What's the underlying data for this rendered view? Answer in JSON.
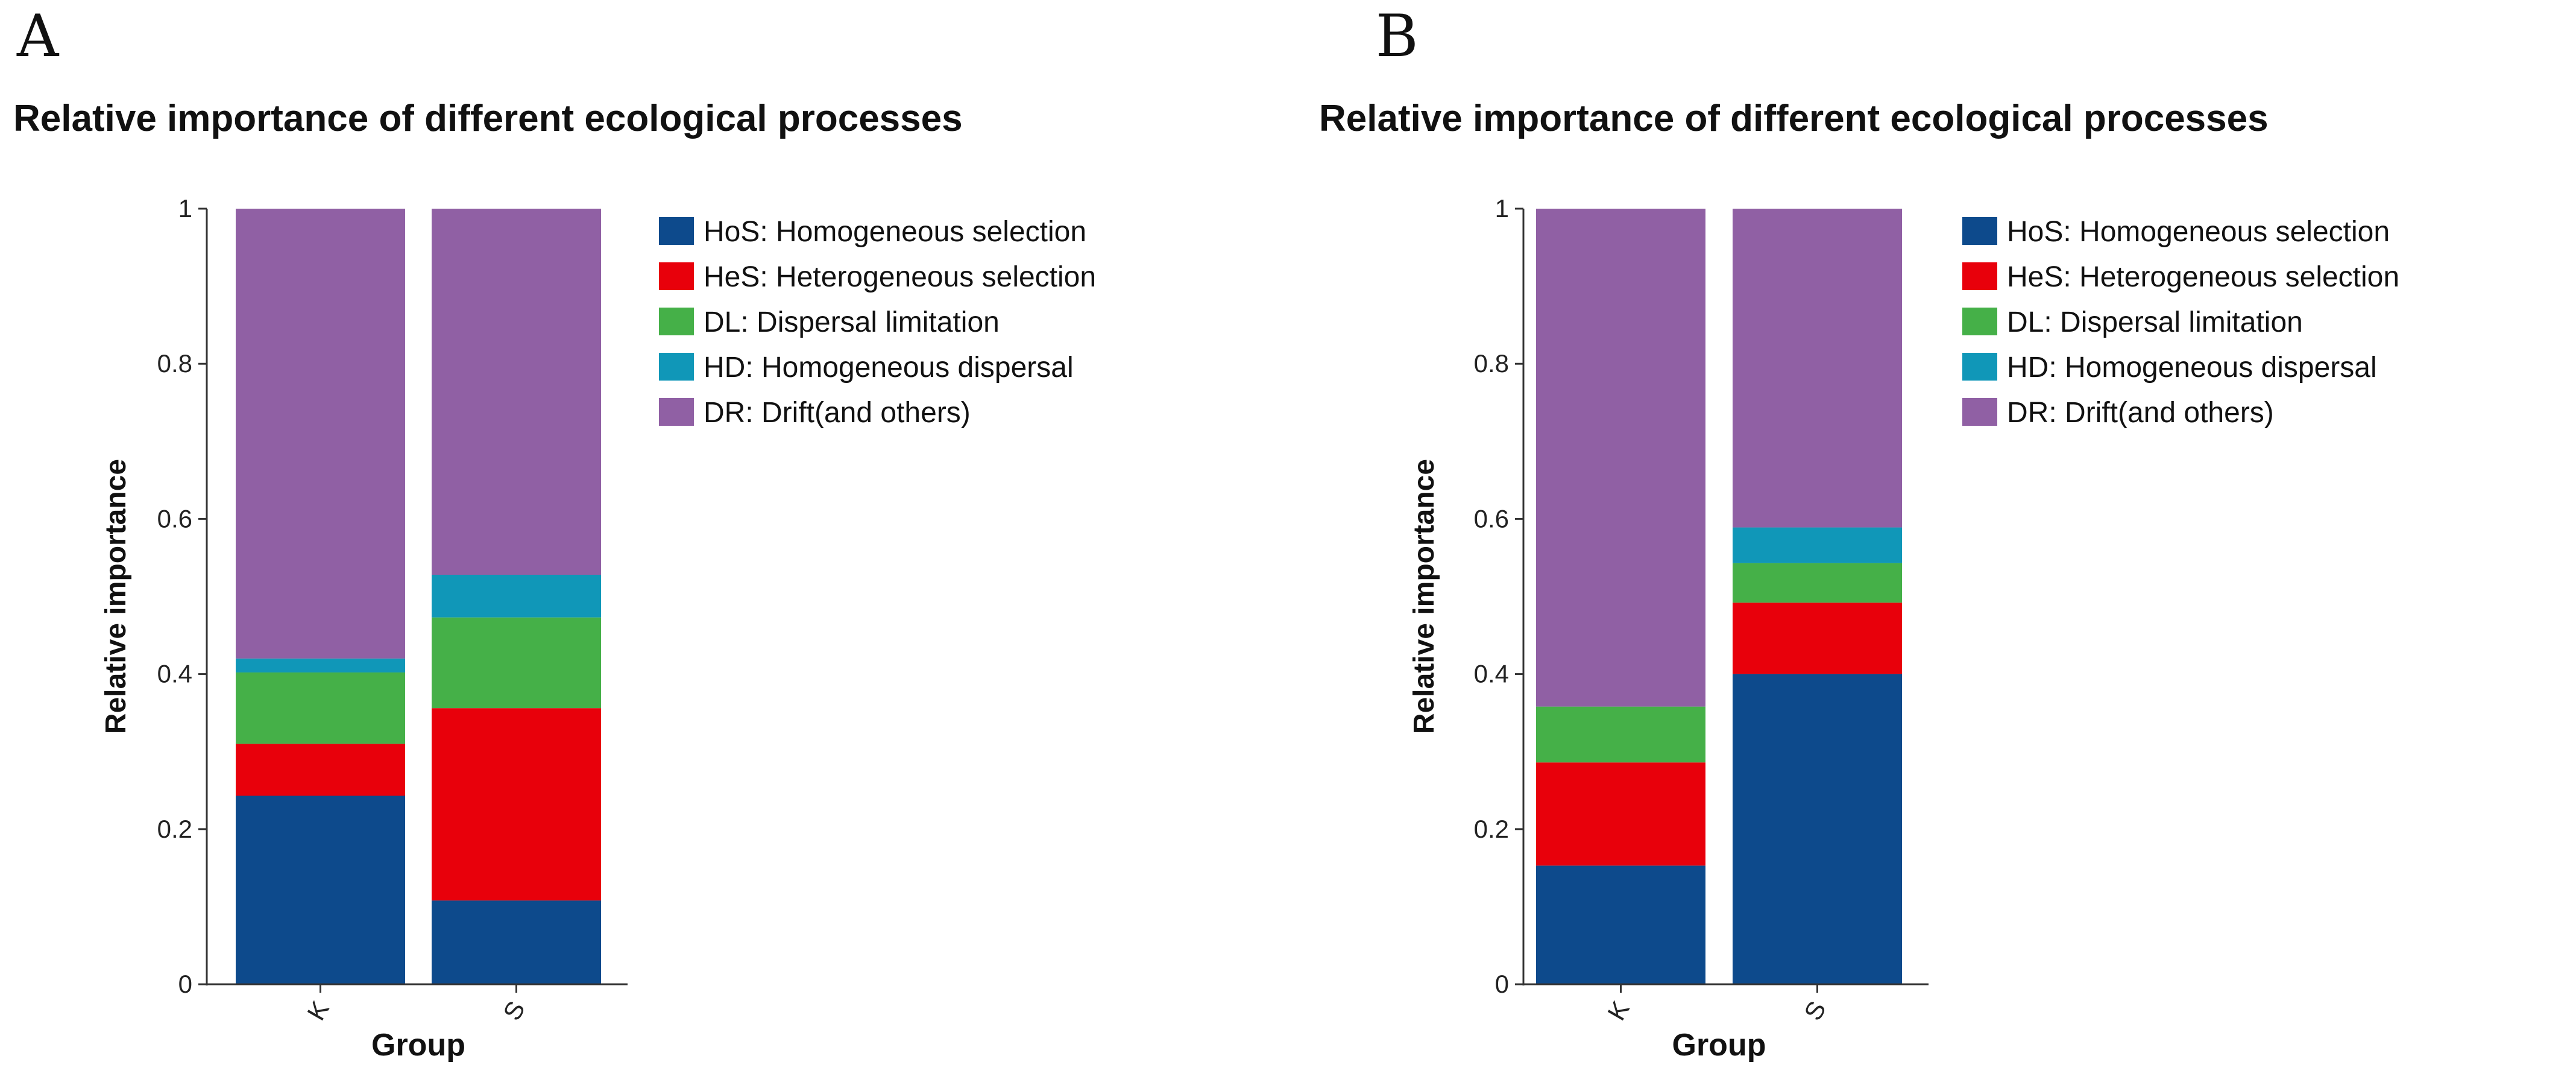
{
  "chart_data": [
    {
      "panel_label": "A",
      "type": "bar",
      "stacked": true,
      "title": "Relative importance of different ecological processes",
      "xlabel": "Group",
      "ylabel": "Relative importance",
      "categories": [
        "K",
        "S"
      ],
      "ylim": [
        0,
        1
      ],
      "yticks": [
        "0",
        "0.2",
        "0.4",
        "0.6",
        "0.8",
        "1"
      ],
      "legend_position": "right",
      "series": [
        {
          "name": "HoS: Homogeneous selection",
          "color": "#0d4a8c",
          "values": [
            0.243,
            0.108
          ]
        },
        {
          "name": "HeS: Heterogeneous selection",
          "color": "#e8000b",
          "values": [
            0.067,
            0.248
          ]
        },
        {
          "name": "DL: Dispersal limitation",
          "color": "#45b048",
          "values": [
            0.092,
            0.117
          ]
        },
        {
          "name": "HD: Homogeneous dispersal",
          "color": "#1097b8",
          "values": [
            0.018,
            0.055
          ]
        },
        {
          "name": "DR: Drift(and others)",
          "color": "#9060a4",
          "values": [
            0.58,
            0.472
          ]
        }
      ]
    },
    {
      "panel_label": "B",
      "type": "bar",
      "stacked": true,
      "title": "Relative importance of different ecological processes",
      "xlabel": "Group",
      "ylabel": "Relative importance",
      "categories": [
        "K",
        "S"
      ],
      "ylim": [
        0,
        1
      ],
      "yticks": [
        "0",
        "0.2",
        "0.4",
        "0.6",
        "0.8",
        "1"
      ],
      "legend_position": "right",
      "series": [
        {
          "name": "HoS: Homogeneous selection",
          "color": "#0d4a8c",
          "values": [
            0.153,
            0.4
          ]
        },
        {
          "name": "HeS: Heterogeneous selection",
          "color": "#e8000b",
          "values": [
            0.133,
            0.092
          ]
        },
        {
          "name": "DL: Dispersal limitation",
          "color": "#45b048",
          "values": [
            0.072,
            0.051
          ]
        },
        {
          "name": "HD: Homogeneous dispersal",
          "color": "#1097b8",
          "values": [
            0.0,
            0.046
          ]
        },
        {
          "name": "DR: Drift(and others)",
          "color": "#9060a4",
          "values": [
            0.642,
            0.411
          ]
        }
      ]
    }
  ]
}
